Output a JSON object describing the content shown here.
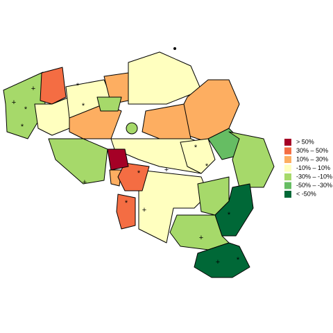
{
  "legend": [
    {
      "label": ">  50%",
      "color": "#a50026"
    },
    {
      "label": "30%  –  50%",
      "color": "#f46d43"
    },
    {
      "label": "10%  –  30%",
      "color": "#fdae61"
    },
    {
      "label": "-10%  –  10%",
      "color": "#ffffbf"
    },
    {
      "label": "-30%  –  -10%",
      "color": "#a6d96a"
    },
    {
      "label": "-50%  –  -30%",
      "color": "#66bd63"
    },
    {
      "label": "< -50%",
      "color": "#006837"
    }
  ],
  "markers": [
    "+",
    "+",
    "+",
    "+",
    "+",
    "+",
    "+",
    "*",
    "*",
    "*",
    "*",
    "*",
    "*",
    "*",
    "*",
    "*",
    "*"
  ]
}
